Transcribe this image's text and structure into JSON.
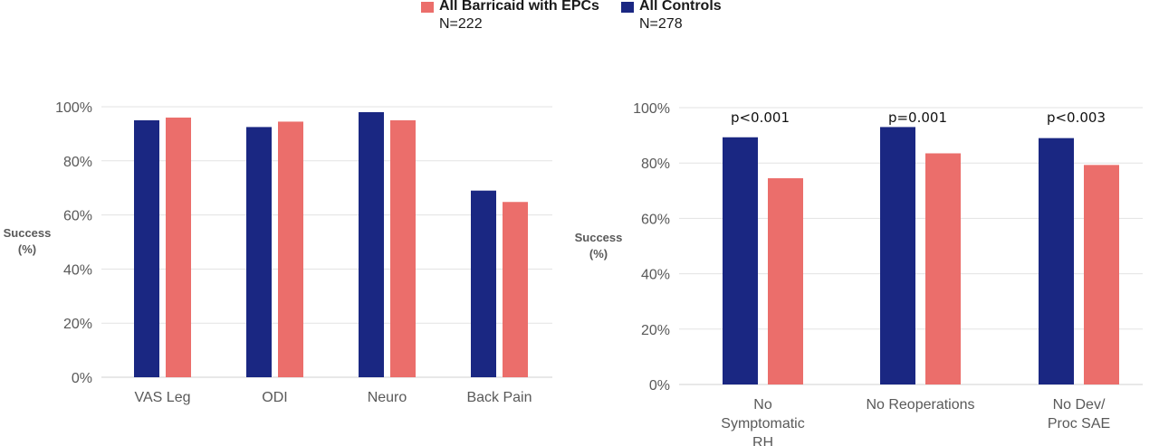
{
  "legend": {
    "barricaid": {
      "name": "All Barricaid with EPCs",
      "n": "N=222"
    },
    "controls": {
      "name": "All Controls",
      "n": "N=278"
    }
  },
  "colors": {
    "barricaid": "#eb6e6b",
    "controls": "#1a2782",
    "grid": "#e3e3e3",
    "axis": "#d0d0d0"
  },
  "chart_data": [
    {
      "type": "bar",
      "ylabel": "Success (%)",
      "ylabel_lines": [
        "Success",
        "(%)"
      ],
      "ylim": [
        0,
        100
      ],
      "y_ticks": [
        "0%",
        "20%",
        "40%",
        "60%",
        "80%",
        "100%"
      ],
      "grid": true,
      "categories": [
        "VAS Leg",
        "ODI",
        "Neuro",
        "Back Pain"
      ],
      "category_lines": [
        [
          "VAS Leg"
        ],
        [
          "ODI"
        ],
        [
          "Neuro"
        ],
        [
          "Back Pain"
        ]
      ],
      "series": [
        {
          "name": "All Controls",
          "color": "#1a2782",
          "values": [
            95,
            92.5,
            98,
            69
          ]
        },
        {
          "name": "All Barricaid with EPCs",
          "color": "#eb6e6b",
          "values": [
            96,
            94.5,
            95,
            64.8
          ]
        }
      ],
      "annotations": []
    },
    {
      "type": "bar",
      "ylabel": "Success (%)",
      "ylabel_lines": [
        "Success",
        "(%)"
      ],
      "ylim": [
        0,
        100
      ],
      "y_ticks": [
        "0%",
        "20%",
        "40%",
        "60%",
        "80%",
        "100%"
      ],
      "grid": true,
      "categories": [
        "No Symptomatic RH",
        "No Reoperations",
        "No Dev/ Proc SAE"
      ],
      "category_lines": [
        [
          "No",
          "Symptomatic",
          "RH"
        ],
        [
          "No Reoperations"
        ],
        [
          "No Dev/",
          "Proc SAE"
        ]
      ],
      "series": [
        {
          "name": "All Controls",
          "color": "#1a2782",
          "values": [
            89.3,
            93,
            89
          ]
        },
        {
          "name": "All Barricaid with EPCs",
          "color": "#eb6e6b",
          "values": [
            74.5,
            83.5,
            79.3
          ]
        }
      ],
      "annotations": [
        "p<0.001",
        "p=0.001",
        "p<0.003"
      ]
    }
  ]
}
